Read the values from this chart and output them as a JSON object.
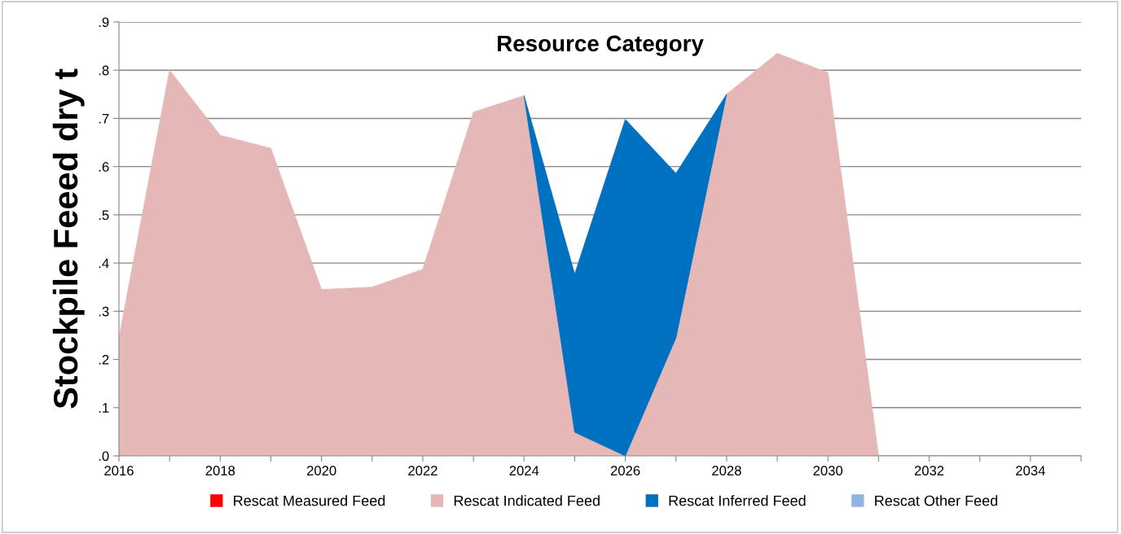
{
  "chart_data": {
    "type": "area",
    "stacked": true,
    "title": "Resource Category",
    "ylabel": "Stockpile Feeed dry t",
    "x": [
      2016,
      2017,
      2018,
      2019,
      2020,
      2021,
      2022,
      2023,
      2024,
      2025,
      2026,
      2027,
      2028,
      2029,
      2030,
      2031,
      2032,
      2033,
      2034,
      2035
    ],
    "series": [
      {
        "name": "Rescat Measured Feed",
        "color": "#ff0000",
        "values": [
          null,
          null,
          null,
          null,
          null,
          null,
          null,
          null,
          null,
          null,
          null,
          null,
          null,
          null,
          null,
          null,
          null,
          null,
          null,
          null
        ]
      },
      {
        "name": "Rescat Indicated Feed",
        "color": "#e5b8b7",
        "values": [
          0.245,
          0.8,
          0.665,
          0.638,
          0.345,
          0.35,
          0.387,
          0.713,
          0.747,
          0.049,
          0.0,
          0.245,
          0.75,
          0.835,
          0.795,
          0.0,
          0,
          0,
          0,
          0
        ]
      },
      {
        "name": "Rescat Inferred Feed",
        "color": "#0070c0",
        "values": [
          null,
          null,
          null,
          null,
          null,
          null,
          null,
          null,
          0,
          0.328,
          0.698,
          0.341,
          0,
          null,
          null,
          null,
          null,
          null,
          null,
          null
        ]
      },
      {
        "name": "Rescat Other Feed",
        "color": "#8eb4e3",
        "values": [
          null,
          null,
          null,
          null,
          null,
          null,
          null,
          null,
          null,
          null,
          null,
          null,
          null,
          null,
          null,
          null,
          null,
          null,
          null,
          null
        ]
      }
    ],
    "xlim": [
      2016,
      2035
    ],
    "xticks": [
      2016,
      {
        "value": 2017,
        "label": null
      },
      2018,
      {
        "value": 2019,
        "label": null
      },
      2020,
      {
        "value": 2021,
        "label": null
      },
      2022,
      {
        "value": 2023,
        "label": null
      },
      2024,
      {
        "value": 2025,
        "label": null
      },
      2026,
      {
        "value": 2027,
        "label": null
      },
      2028,
      {
        "value": 2029,
        "label": null
      },
      2030,
      {
        "value": 2031,
        "label": null
      },
      2032,
      {
        "value": 2033,
        "label": null
      },
      2034,
      {
        "value": 2035,
        "label": null
      }
    ],
    "ylim": [
      0,
      0.9
    ],
    "yticks": [
      {
        "value": 0,
        "label": ".0"
      },
      {
        "value": 0.1,
        "label": ".1"
      },
      {
        "value": 0.2,
        "label": ".2"
      },
      {
        "value": 0.3,
        "label": ".3"
      },
      {
        "value": 0.4,
        "label": ".4"
      },
      {
        "value": 0.5,
        "label": ".5"
      },
      {
        "value": 0.6,
        "label": ".6"
      },
      {
        "value": 0.7,
        "label": ".7"
      },
      {
        "value": 0.8,
        "label": ".8"
      },
      {
        "value": 0.9,
        "label": ".9"
      }
    ],
    "grid": "y",
    "legend": "bottom"
  }
}
